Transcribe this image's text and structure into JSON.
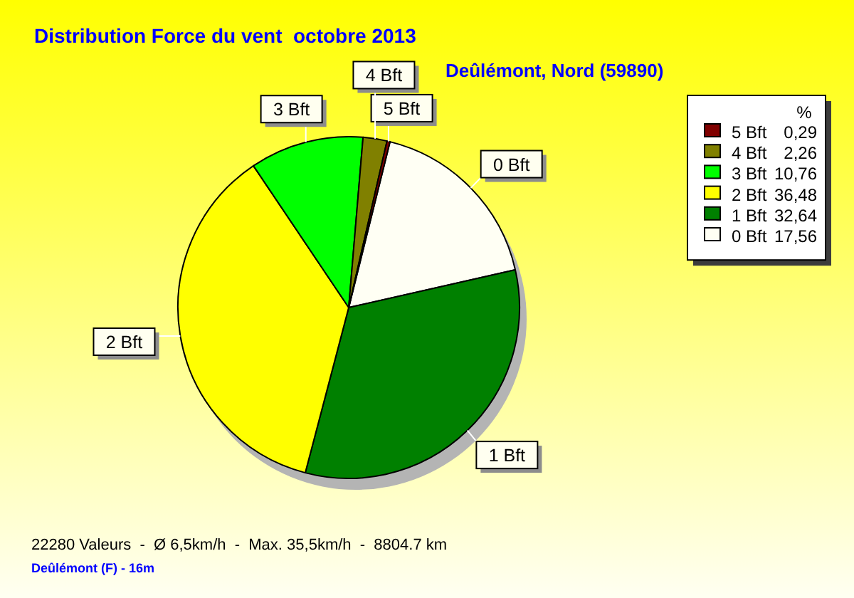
{
  "chart_data": {
    "type": "pie",
    "title": "Distribution Force du vent  octobre 2013",
    "subtitle": "Deûlémont, Nord (59890)",
    "categories": [
      "0 Bft",
      "1 Bft",
      "2 Bft",
      "3 Bft",
      "4 Bft",
      "5 Bft"
    ],
    "values": [
      17.56,
      32.64,
      36.48,
      10.76,
      2.26,
      0.29
    ],
    "value_labels": [
      "17,56",
      "32,64",
      "36,48",
      "10,76",
      "2,26",
      "0,29"
    ],
    "colors": [
      "#fffff4",
      "#008000",
      "#ffff00",
      "#00ff00",
      "#808000",
      "#800000"
    ],
    "legend": "top right",
    "legend_title": "%",
    "annotations": [
      "22280 Valeurs  -  Ø 6,5km/h  -  Max. 35,5km/h  -  8804.7 km",
      "Deûlémont (F) - 16m"
    ]
  }
}
